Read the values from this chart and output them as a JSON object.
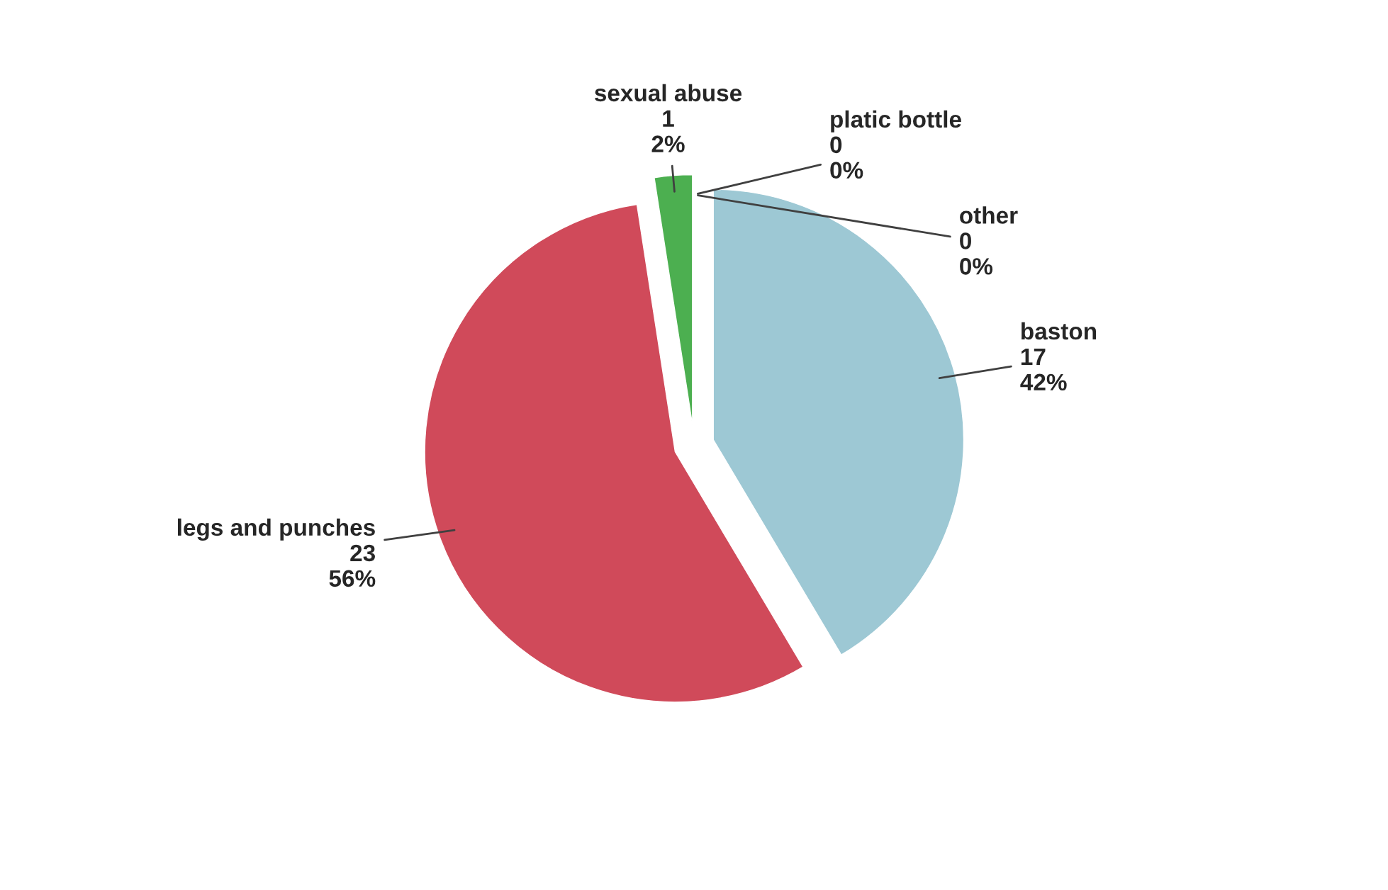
{
  "chart_data": {
    "type": "pie",
    "categories": [
      "baston",
      "legs and punches",
      "sexual abuse",
      "platic bottle",
      "other"
    ],
    "values": [
      17,
      23,
      1,
      0,
      0
    ],
    "value_labels": [
      "17\n42%",
      "23\n56%",
      "1\n2%",
      "0\n0%",
      "0\n0%"
    ],
    "colors": [
      "#9dc8d4",
      "#d04a5a",
      "#4caf50",
      "#7f7f7f",
      "#a5a5a5"
    ],
    "legend": false
  }
}
